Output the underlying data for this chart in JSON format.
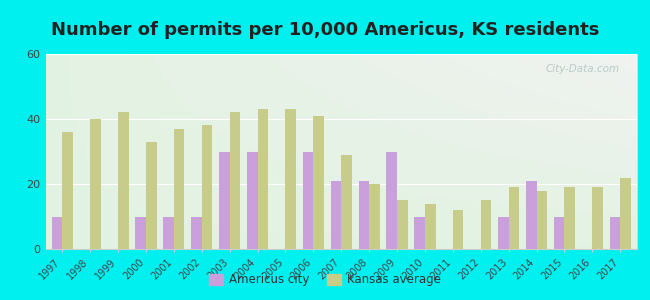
{
  "title": "Number of permits per 10,000 Americus, KS residents",
  "years": [
    1997,
    1998,
    1999,
    2000,
    2001,
    2002,
    2003,
    2004,
    2005,
    2006,
    2007,
    2008,
    2009,
    2010,
    2011,
    2012,
    2013,
    2014,
    2015,
    2016,
    2017
  ],
  "americus_city": [
    10,
    0,
    0,
    10,
    10,
    10,
    30,
    30,
    0,
    30,
    21,
    21,
    30,
    10,
    0,
    0,
    10,
    21,
    10,
    0,
    10
  ],
  "kansas_avg": [
    36,
    40,
    42,
    33,
    37,
    38,
    42,
    43,
    43,
    41,
    29,
    20,
    15,
    14,
    12,
    15,
    19,
    18,
    19,
    19,
    22
  ],
  "americus_color": "#c9a0dc",
  "kansas_color": "#c8cc8a",
  "ylim": [
    0,
    60
  ],
  "yticks": [
    0,
    20,
    40,
    60
  ],
  "background_color_fig": "#00f0f0",
  "title_fontsize": 13,
  "title_color": "#222222",
  "legend_americus": "Americus city",
  "legend_kansas": "Kansas average",
  "bar_width": 0.38,
  "watermark": "City-Data.com",
  "watermark_color": "#b0c4c4",
  "grid_color": "#ffffff",
  "spine_color": "#cccccc",
  "tick_label_color": "#444444",
  "plot_bg_top": "#f8fff8",
  "plot_bg_bottom": "#d8f0d8"
}
